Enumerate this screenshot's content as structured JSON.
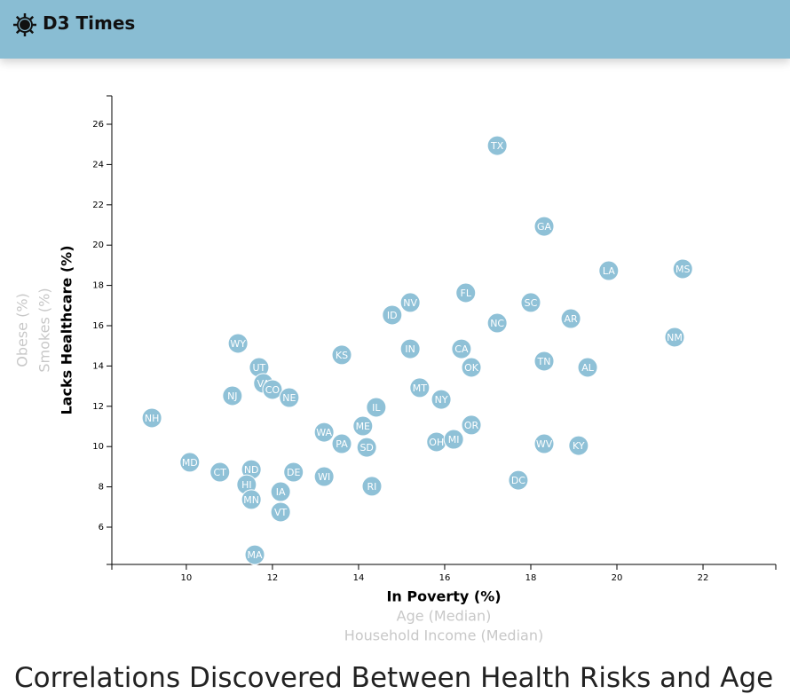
{
  "header": {
    "title": "D3 Times"
  },
  "heading": "Correlations Discovered Between Health Risks and Age",
  "chart_data": {
    "type": "scatter",
    "xlabels": [
      "In Poverty (%)",
      "Age (Median)",
      "Household Income (Median)"
    ],
    "ylabels": [
      "Lacks Healthcare (%)",
      "Smokes (%)",
      "Obese (%)"
    ],
    "color": "#8fc1d7",
    "xlim": [
      8.27,
      23.69
    ],
    "xticks": [
      10,
      12,
      14,
      16,
      18,
      20,
      22
    ],
    "ylim": [
      4.15,
      27.41
    ],
    "yticks": [
      6,
      8,
      10,
      12,
      14,
      16,
      18,
      20,
      22,
      24,
      26
    ],
    "labels": [
      "TX",
      "GA",
      "LA",
      "MS",
      "FL",
      "NV",
      "SC",
      "ID",
      "AR",
      "NC",
      "NM",
      "WY",
      "KS",
      "IN",
      "CA",
      "TN",
      "UT",
      "OK",
      "AL",
      "VA",
      "CO",
      "MT",
      "NJ",
      "NE",
      "NY",
      "IL",
      "NH",
      "ME",
      "OR",
      "WA",
      "OH",
      "MI",
      "PA",
      "SD",
      "WV",
      "KY",
      "MD",
      "CT",
      "ND",
      "DE",
      "WI",
      "HI",
      "RI",
      "DC",
      "IA",
      "MN",
      "VT",
      "MA"
    ],
    "x": [
      17.22,
      18.31,
      19.81,
      21.53,
      16.49,
      15.2,
      18.0,
      14.78,
      18.93,
      17.22,
      21.34,
      11.2,
      13.61,
      15.2,
      16.39,
      18.31,
      11.69,
      16.62,
      19.32,
      11.79,
      12.0,
      15.42,
      11.07,
      12.39,
      15.92,
      14.41,
      9.2,
      14.1,
      16.62,
      13.2,
      15.81,
      16.21,
      13.61,
      14.19,
      18.31,
      19.11,
      10.08,
      10.78,
      11.51,
      12.49,
      13.2,
      11.4,
      14.31,
      17.71,
      12.19,
      11.51,
      12.19,
      11.59
    ],
    "values": [
      24.94,
      20.93,
      18.73,
      18.82,
      17.63,
      17.15,
      17.15,
      16.53,
      16.35,
      16.13,
      15.43,
      15.12,
      14.55,
      14.85,
      14.85,
      14.24,
      13.93,
      13.93,
      13.93,
      13.14,
      12.83,
      12.92,
      12.52,
      12.43,
      12.34,
      11.95,
      11.42,
      11.02,
      11.07,
      10.71,
      10.23,
      10.36,
      10.14,
      9.96,
      10.14,
      10.05,
      9.22,
      8.73,
      8.86,
      8.73,
      8.51,
      8.11,
      8.03,
      8.33,
      7.76,
      7.37,
      6.75,
      4.63
    ]
  }
}
